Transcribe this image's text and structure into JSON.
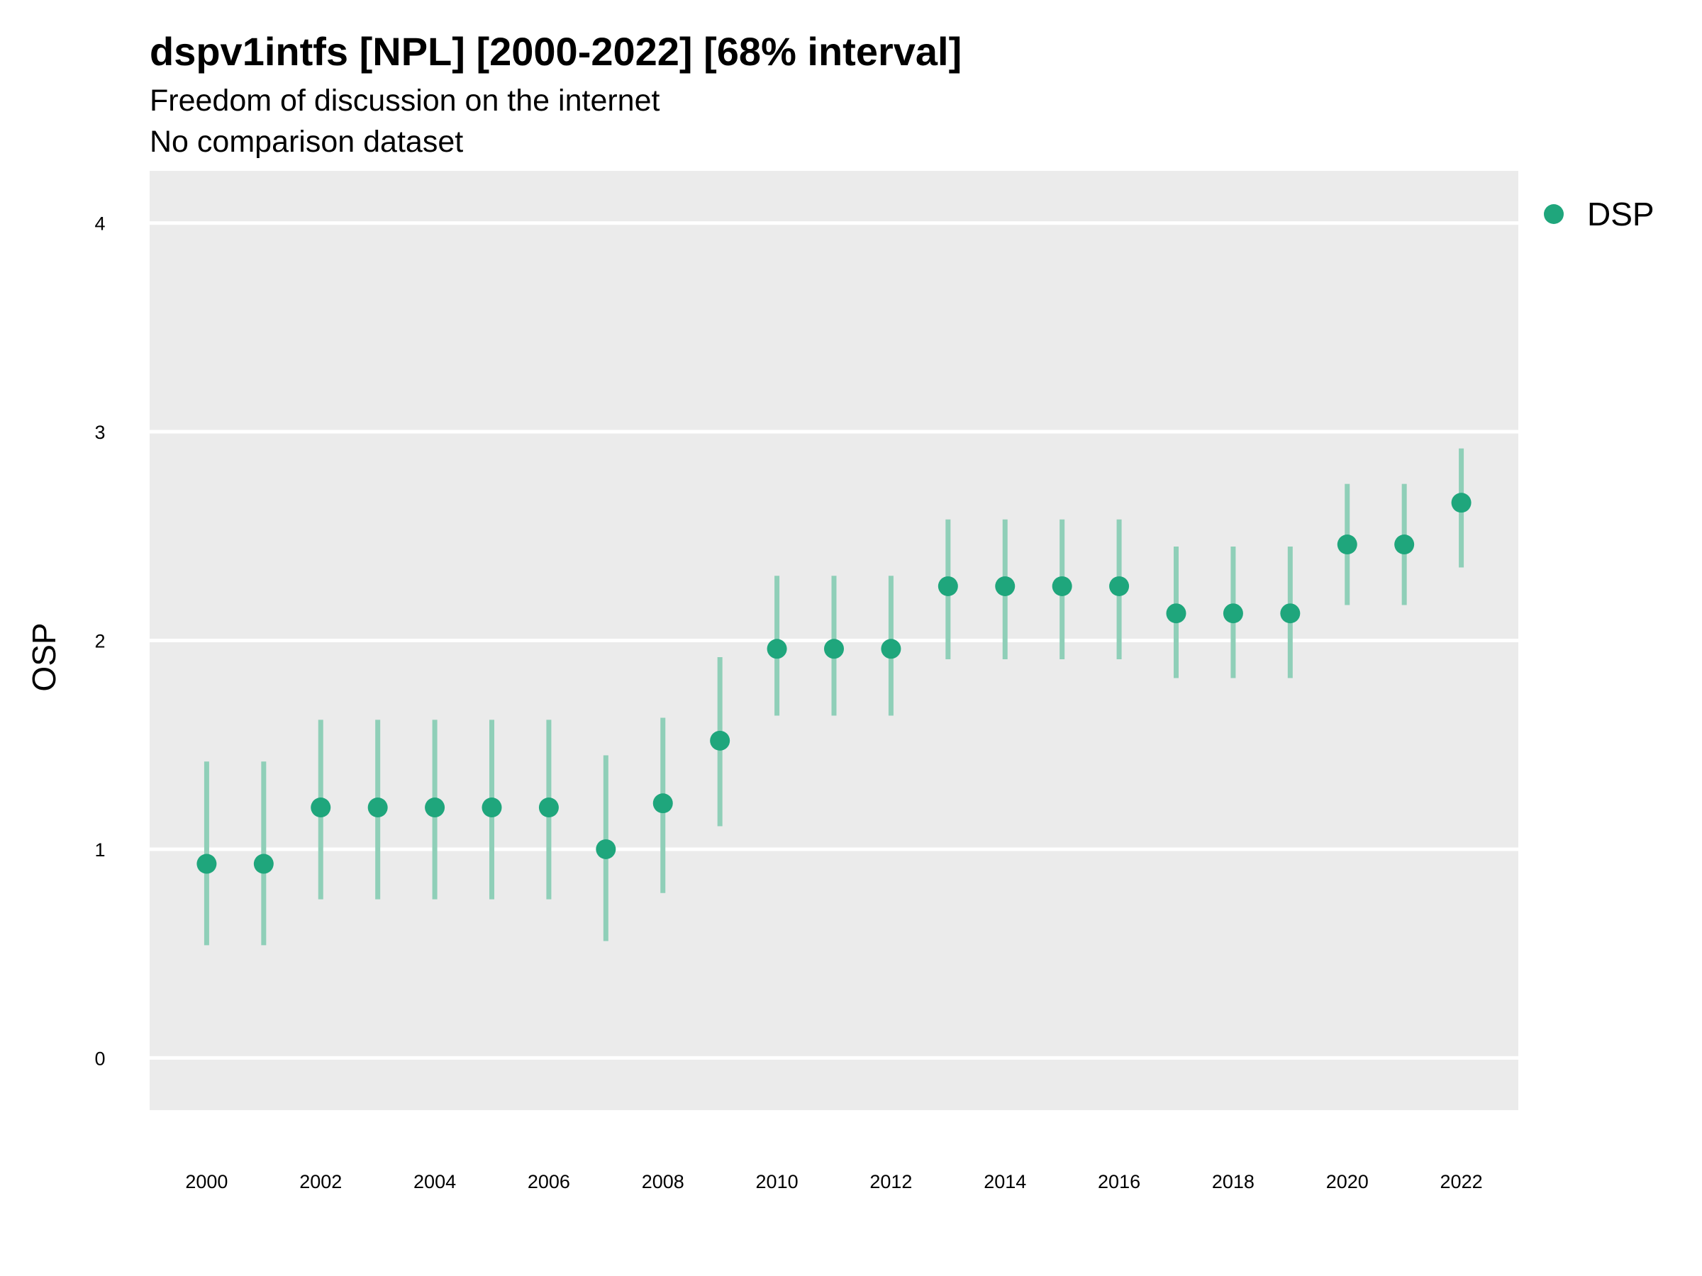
{
  "chart_data": {
    "type": "scatter",
    "title": "dspv1intfs [NPL] [2000-2022] [68% interval]",
    "subtitle_lines": [
      "Freedom of discussion on the internet",
      "No comparison dataset"
    ],
    "xlabel": "",
    "ylabel": "OSP",
    "x_ticks": [
      "2000",
      "2002",
      "2004",
      "2006",
      "2008",
      "2010",
      "2012",
      "2014",
      "2016",
      "2018",
      "2020",
      "2022"
    ],
    "y_ticks": [
      "0",
      "1",
      "2",
      "3",
      "4"
    ],
    "xlim": [
      1999,
      2023
    ],
    "ylim": [
      -0.25,
      4.25
    ],
    "grid": true,
    "legend_position": "top-right",
    "series": [
      {
        "name": "DSP",
        "color": "#1fa67c",
        "interval_color": "#8fcfb8",
        "x": [
          2000,
          2001,
          2002,
          2003,
          2004,
          2005,
          2006,
          2007,
          2008,
          2009,
          2010,
          2011,
          2012,
          2013,
          2014,
          2015,
          2016,
          2017,
          2018,
          2019,
          2020,
          2021,
          2022
        ],
        "y": [
          0.93,
          0.93,
          1.2,
          1.2,
          1.2,
          1.2,
          1.2,
          1.0,
          1.22,
          1.52,
          1.96,
          1.96,
          1.96,
          2.26,
          2.26,
          2.26,
          2.26,
          2.13,
          2.13,
          2.13,
          2.46,
          2.46,
          2.66
        ],
        "lower": [
          0.54,
          0.54,
          0.76,
          0.76,
          0.76,
          0.76,
          0.76,
          0.56,
          0.79,
          1.11,
          1.64,
          1.64,
          1.64,
          1.91,
          1.91,
          1.91,
          1.91,
          1.82,
          1.82,
          1.82,
          2.17,
          2.17,
          2.35
        ],
        "upper": [
          1.42,
          1.42,
          1.62,
          1.62,
          1.62,
          1.62,
          1.62,
          1.45,
          1.63,
          1.92,
          2.31,
          2.31,
          2.31,
          2.58,
          2.58,
          2.58,
          2.58,
          2.45,
          2.45,
          2.45,
          2.75,
          2.75,
          2.92
        ]
      }
    ]
  }
}
